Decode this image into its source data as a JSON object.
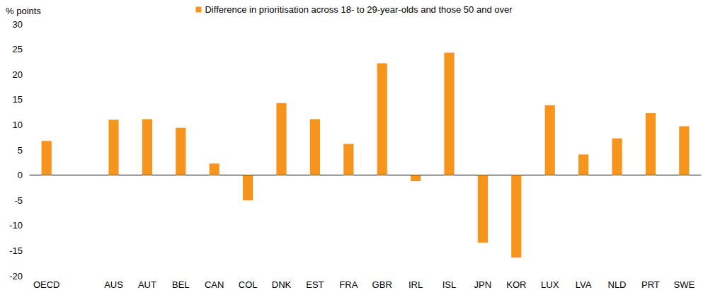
{
  "chart_data": {
    "type": "bar",
    "ylabel": "% points",
    "categories": [
      "OECD",
      null,
      "AUS",
      "AUT",
      "BEL",
      "CAN",
      "COL",
      "DNK",
      "EST",
      "FRA",
      "GBR",
      "IRL",
      "ISL",
      "JPN",
      "KOR",
      "LUX",
      "LVA",
      "NLD",
      "PRT",
      "SWE"
    ],
    "series": [
      {
        "name": "Difference in prioritisation across 18- to 29-year-olds and those 50 and over",
        "color": "#f7941d",
        "values": [
          6.8,
          null,
          11.0,
          11.1,
          9.4,
          2.3,
          -5.0,
          14.3,
          11.1,
          6.2,
          22.2,
          -1.2,
          24.3,
          -13.4,
          -16.4,
          13.9,
          4.1,
          7.3,
          12.3,
          9.7
        ]
      }
    ],
    "ylim": [
      -20,
      30
    ],
    "yticks": [
      -20,
      -15,
      -10,
      -5,
      0,
      5,
      10,
      15,
      20,
      25,
      30
    ],
    "grid": false,
    "legend": "top"
  }
}
